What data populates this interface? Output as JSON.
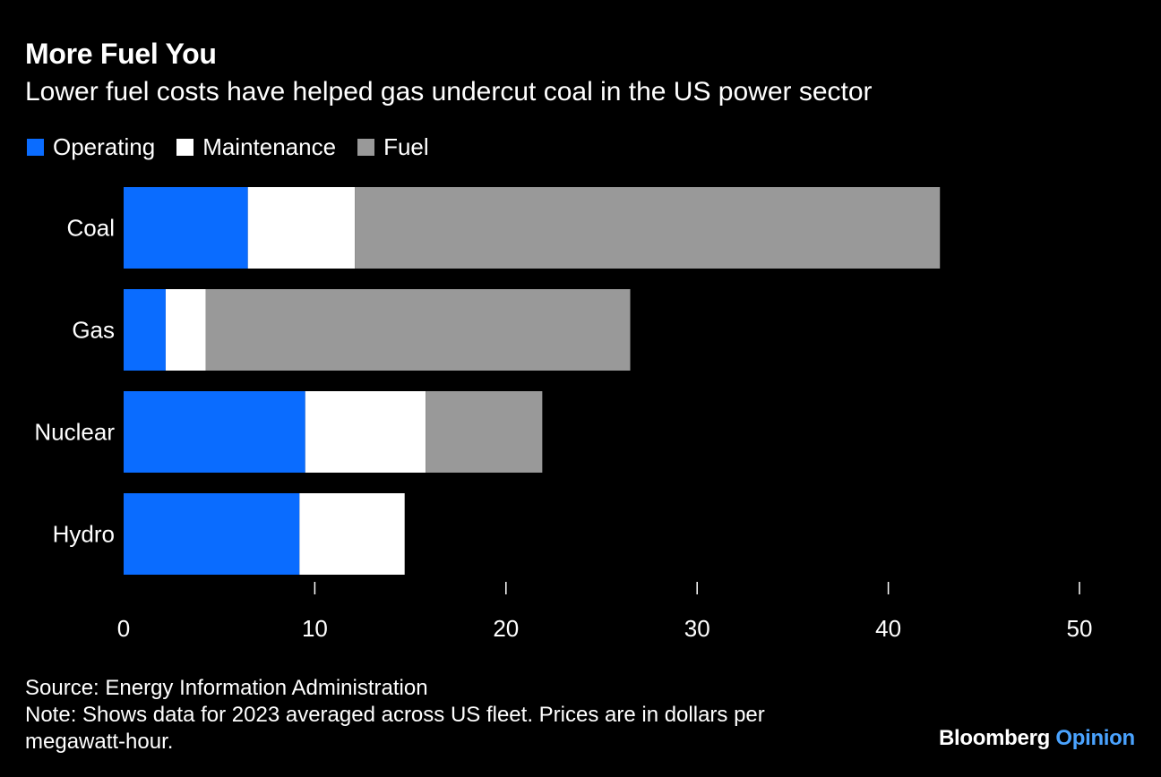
{
  "title": "More Fuel You",
  "subtitle": "Lower fuel costs have helped gas undercut coal in the US power sector",
  "source": "Source: Energy Information Administration",
  "note_line1": "Note: Shows data for 2023 averaged across US fleet. Prices are in dollars per",
  "note_line2": "megawatt-hour.",
  "brand": {
    "name": "Bloomberg",
    "accent": "Opinion",
    "accent_color": "#4aa3ff"
  },
  "colors": {
    "background": "#000000",
    "operating": "#0a6cff",
    "maintenance": "#ffffff",
    "fuel": "#999999"
  },
  "chart_data": {
    "type": "bar",
    "orientation": "horizontal",
    "stacked": true,
    "categories": [
      "Coal",
      "Gas",
      "Nuclear",
      "Hydro"
    ],
    "series": [
      {
        "name": "Operating",
        "color": "#0a6cff",
        "values": [
          6.5,
          2.2,
          9.5,
          9.2
        ]
      },
      {
        "name": "Maintenance",
        "color": "#ffffff",
        "values": [
          5.6,
          2.1,
          6.3,
          5.5
        ]
      },
      {
        "name": "Fuel",
        "color": "#999999",
        "values": [
          30.6,
          22.2,
          6.1,
          0
        ]
      }
    ],
    "xlim": [
      0,
      50
    ],
    "xticks": [
      "0",
      "10",
      "20",
      "30",
      "40",
      "50"
    ],
    "xlabel": "",
    "ylabel": "",
    "grid": false,
    "legend_position": "top-left"
  }
}
